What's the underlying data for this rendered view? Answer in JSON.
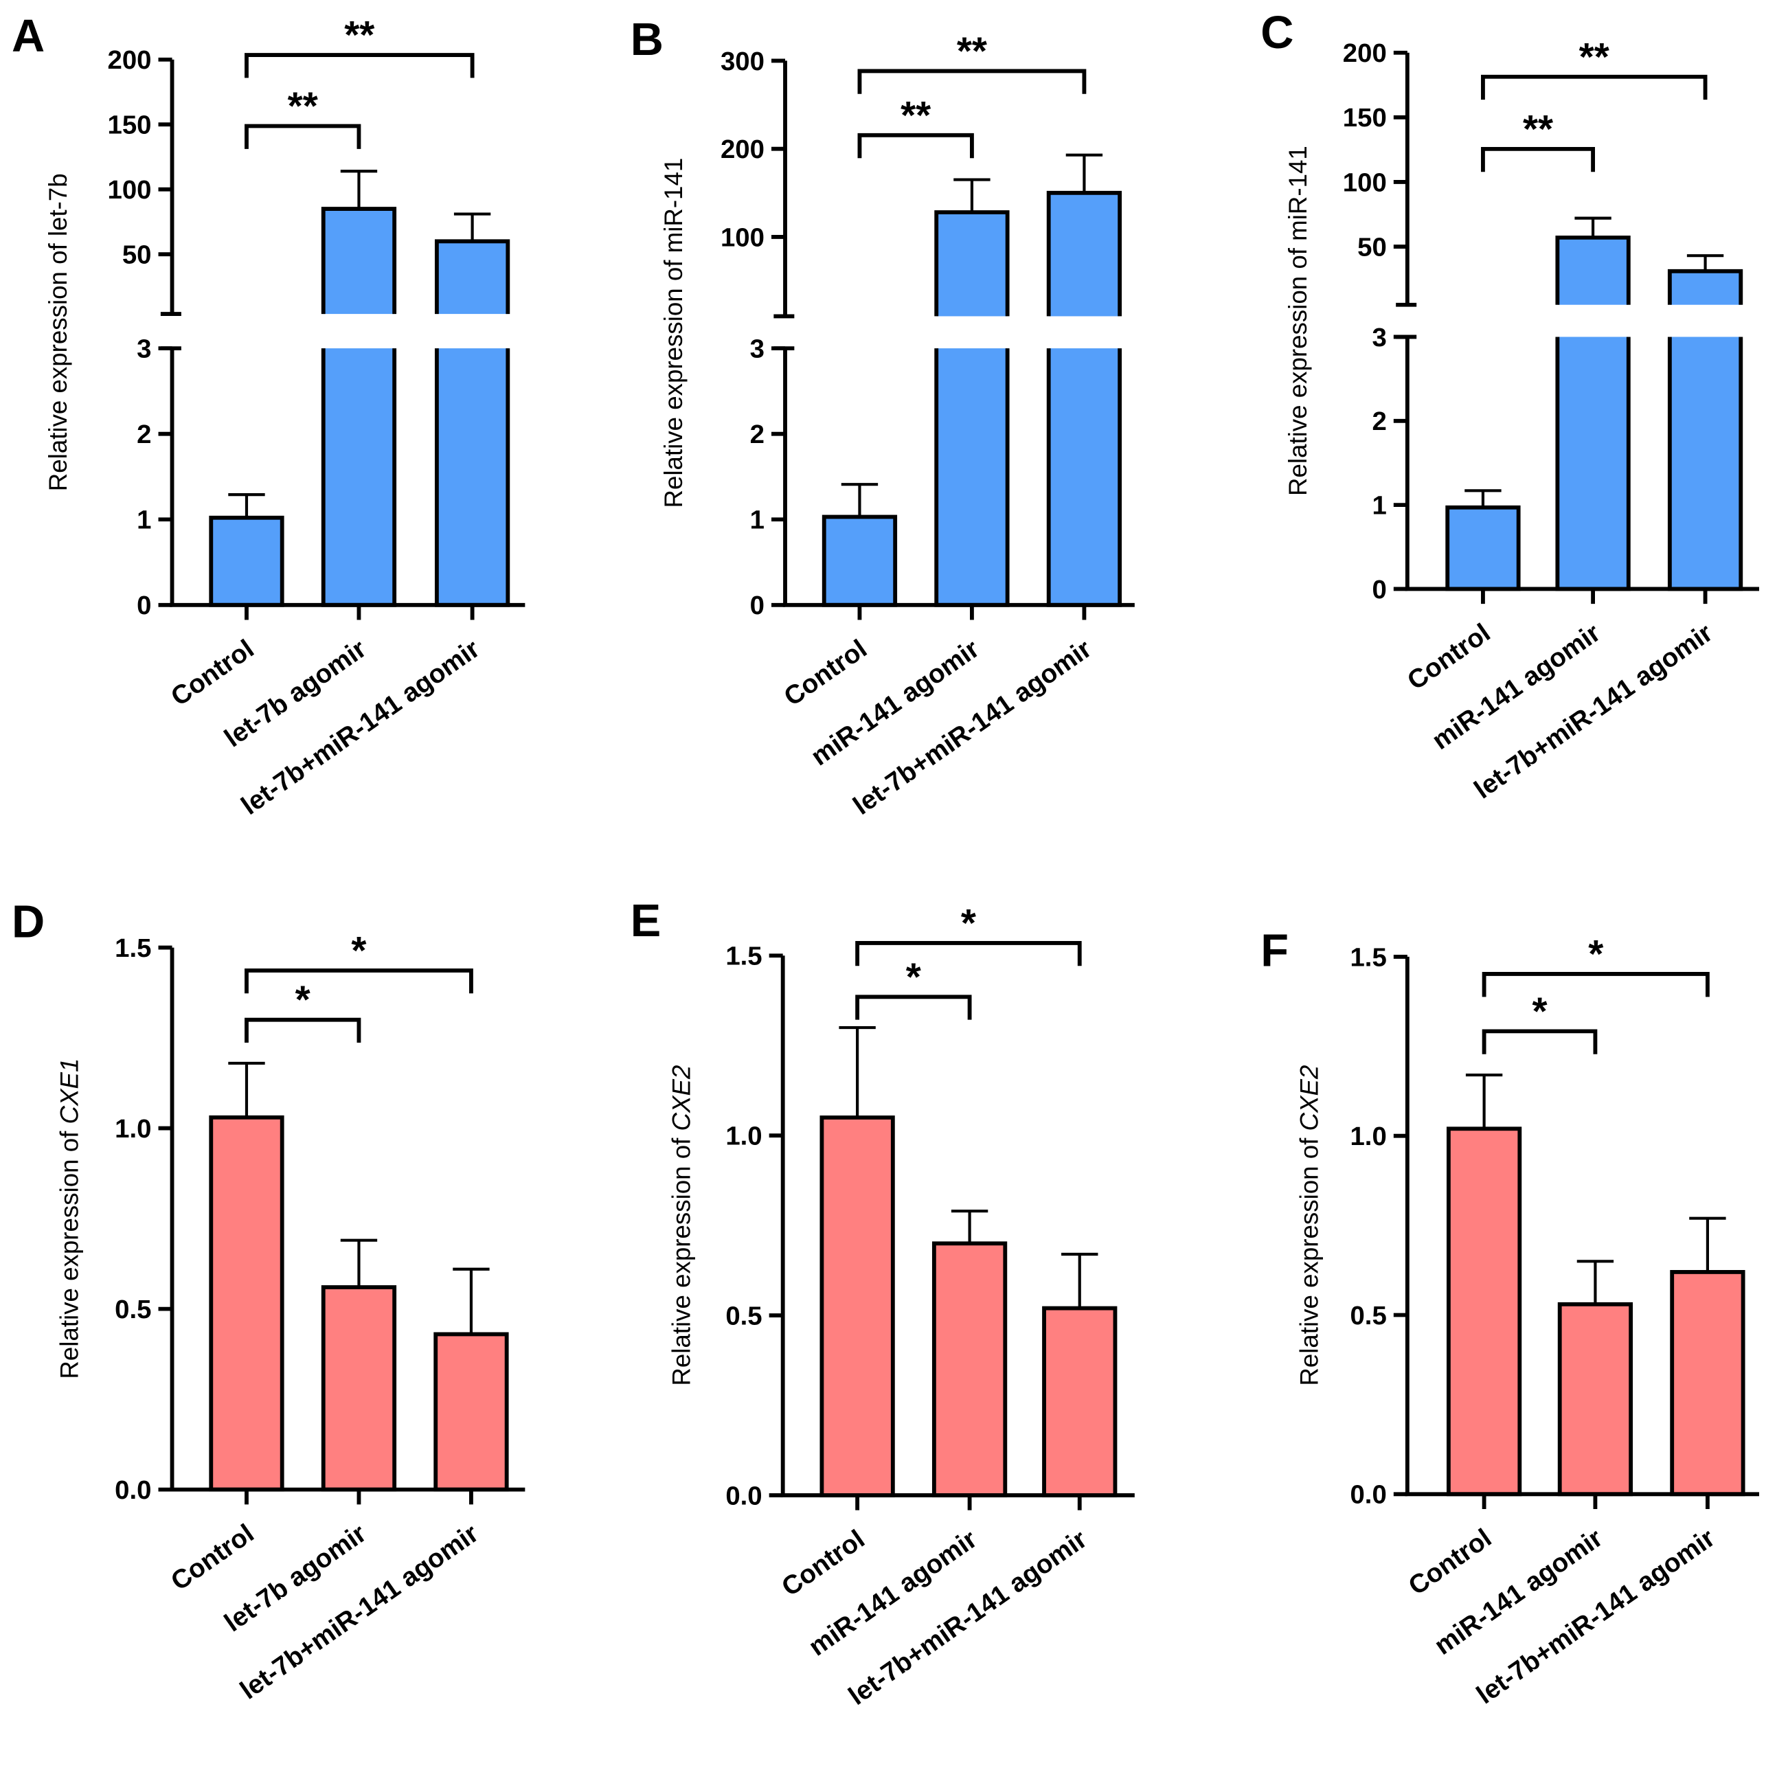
{
  "colors": {
    "blue": "#559FFA",
    "red": "#FF8080",
    "stroke": "#000000"
  },
  "chart_data": [
    {
      "panel": "A",
      "type": "bar",
      "ylabel": "Relative expression of let-7b",
      "ylabel_gene": "",
      "categories": [
        "Control",
        "let-7b agomir",
        "let-7b+miR-141 agomir"
      ],
      "values": [
        1.02,
        85,
        60
      ],
      "errors": [
        0.27,
        29,
        21
      ],
      "axis_break": true,
      "ylim_lower": [
        0,
        3
      ],
      "ylim_upper": [
        4,
        200
      ],
      "yticks_lower": [
        "0",
        "1",
        "2",
        "3"
      ],
      "yticks_upper": [
        "50",
        "100",
        "150",
        "200"
      ],
      "color": "blue",
      "significance": [
        {
          "pair": [
            0,
            1
          ],
          "label": "**"
        },
        {
          "pair": [
            0,
            2
          ],
          "label": "**"
        }
      ]
    },
    {
      "panel": "B",
      "type": "bar",
      "ylabel": "Relative expression of miR-141",
      "ylabel_gene": "",
      "categories": [
        "Control",
        "miR-141 agomir",
        "let-7b+miR-141 agomir"
      ],
      "values": [
        1.03,
        128,
        150
      ],
      "errors": [
        0.38,
        37,
        43
      ],
      "axis_break": true,
      "ylim_lower": [
        0,
        3
      ],
      "ylim_upper": [
        10,
        300
      ],
      "yticks_lower": [
        "0",
        "1",
        "2",
        "3"
      ],
      "yticks_upper": [
        "100",
        "200",
        "300"
      ],
      "color": "blue",
      "significance": [
        {
          "pair": [
            0,
            1
          ],
          "label": "**"
        },
        {
          "pair": [
            0,
            2
          ],
          "label": "**"
        }
      ]
    },
    {
      "panel": "C",
      "type": "bar",
      "ylabel": "Relative expression of miR-141",
      "ylabel_gene": "",
      "categories": [
        "Control",
        "miR-141 agomir",
        "let-7b+miR-141 agomir"
      ],
      "values": [
        0.97,
        57,
        31
      ],
      "errors": [
        0.2,
        15,
        12
      ],
      "axis_break": true,
      "ylim_lower": [
        0,
        3
      ],
      "ylim_upper": [
        5,
        200
      ],
      "yticks_lower": [
        "0",
        "1",
        "2",
        "3"
      ],
      "yticks_upper": [
        "50",
        "100",
        "150",
        "200"
      ],
      "color": "blue",
      "significance": [
        {
          "pair": [
            0,
            1
          ],
          "label": "**"
        },
        {
          "pair": [
            0,
            2
          ],
          "label": "**"
        }
      ]
    },
    {
      "panel": "D",
      "type": "bar",
      "ylabel": "Relative expression of ",
      "ylabel_gene": "CXE1",
      "categories": [
        "Control",
        "let-7b agomir",
        "let-7b+miR-141 agomir"
      ],
      "values": [
        1.03,
        0.56,
        0.43
      ],
      "errors": [
        0.15,
        0.13,
        0.18
      ],
      "axis_break": false,
      "ylim": [
        0,
        1.5
      ],
      "yticks": [
        "0.0",
        "0.5",
        "1.0",
        "1.5"
      ],
      "color": "red",
      "significance": [
        {
          "pair": [
            0,
            1
          ],
          "label": "*"
        },
        {
          "pair": [
            0,
            2
          ],
          "label": "*"
        }
      ]
    },
    {
      "panel": "E",
      "type": "bar",
      "ylabel": "Relative expression of ",
      "ylabel_gene": "CXE2",
      "categories": [
        "Control",
        "miR-141 agomir",
        "let-7b+miR-141 agomir"
      ],
      "values": [
        1.05,
        0.7,
        0.52
      ],
      "errors": [
        0.25,
        0.09,
        0.15
      ],
      "axis_break": false,
      "ylim": [
        0,
        1.5
      ],
      "yticks": [
        "0.0",
        "0.5",
        "1.0",
        "1.5"
      ],
      "color": "red",
      "significance": [
        {
          "pair": [
            0,
            1
          ],
          "label": "*"
        },
        {
          "pair": [
            0,
            2
          ],
          "label": "*"
        }
      ]
    },
    {
      "panel": "F",
      "type": "bar",
      "ylabel": "Relative expression of ",
      "ylabel_gene": "CXE2",
      "categories": [
        "Control",
        "miR-141 agomir",
        "let-7b+miR-141 agomir"
      ],
      "values": [
        1.02,
        0.53,
        0.62
      ],
      "errors": [
        0.15,
        0.12,
        0.15
      ],
      "axis_break": false,
      "ylim": [
        0,
        1.5
      ],
      "yticks": [
        "0.0",
        "0.5",
        "1.0",
        "1.5"
      ],
      "color": "red",
      "significance": [
        {
          "pair": [
            0,
            1
          ],
          "label": "*"
        },
        {
          "pair": [
            0,
            2
          ],
          "label": "*"
        }
      ]
    }
  ]
}
